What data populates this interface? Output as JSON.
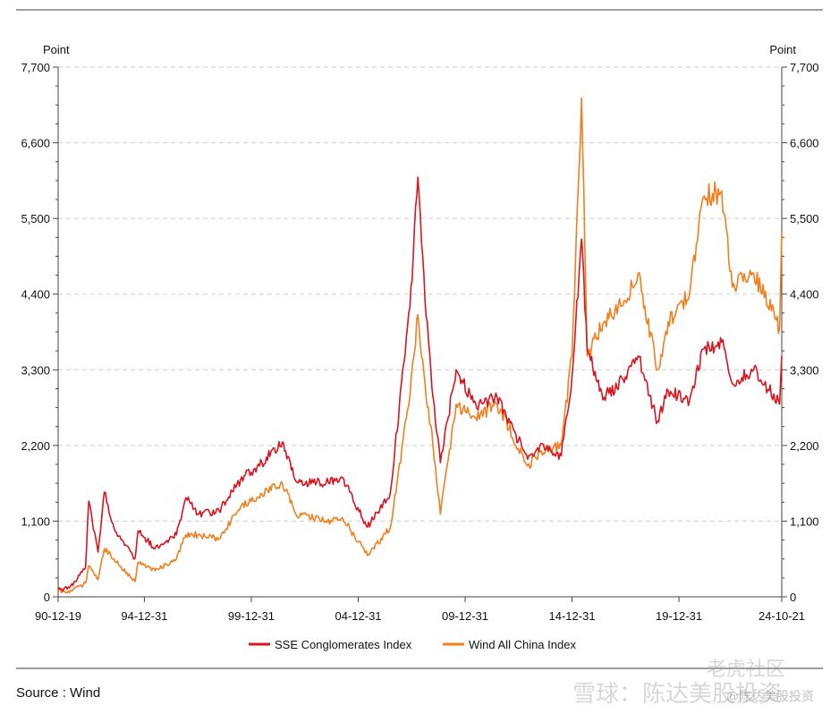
{
  "chart_data": {
    "type": "line",
    "y_unit_left": "Point",
    "y_unit_right": "Point",
    "ylim": [
      0,
      7700
    ],
    "y_ticks": [
      0,
      1100,
      2200,
      3300,
      4400,
      5500,
      6600,
      7700
    ],
    "y_tick_labels": [
      "0",
      "1,100",
      "2,200",
      "3,300",
      "4,400",
      "5,500",
      "6,600",
      "7,700"
    ],
    "xlim": [
      "1990-12-19",
      "2024-10-21"
    ],
    "x_ticks": [
      "1990-12-19",
      "1994-12-31",
      "1999-12-31",
      "2004-12-31",
      "2009-12-31",
      "2014-12-31",
      "2019-12-31",
      "2024-10-21"
    ],
    "x_tick_labels": [
      "90-12-19",
      "94-12-31",
      "99-12-31",
      "04-12-31",
      "09-12-31",
      "14-12-31",
      "19-12-31",
      "24-10-21"
    ],
    "grid": "horizontal dashed",
    "legend_placement": "bottom",
    "series": [
      {
        "name": "SSE Conglomerates Index",
        "color": "#d7151f",
        "points": [
          [
            "1990-12-19",
            100
          ],
          [
            "1991-06-30",
            130
          ],
          [
            "1992-03-31",
            420
          ],
          [
            "1992-05-25",
            1390
          ],
          [
            "1992-10-31",
            650
          ],
          [
            "1993-02-15",
            1520
          ],
          [
            "1993-07-31",
            1000
          ],
          [
            "1994-07-25",
            560
          ],
          [
            "1994-09-15",
            960
          ],
          [
            "1995-06-30",
            700
          ],
          [
            "1996-06-30",
            900
          ],
          [
            "1996-12-10",
            1440
          ],
          [
            "1997-06-30",
            1200
          ],
          [
            "1998-06-30",
            1250
          ],
          [
            "1999-06-30",
            1700
          ],
          [
            "2000-06-30",
            1950
          ],
          [
            "2001-06-14",
            2250
          ],
          [
            "2002-01-31",
            1680
          ],
          [
            "2003-06-30",
            1650
          ],
          [
            "2004-04-07",
            1730
          ],
          [
            "2005-06-06",
            1010
          ],
          [
            "2006-06-30",
            1500
          ],
          [
            "2007-05-31",
            4200
          ],
          [
            "2007-10-16",
            6100
          ],
          [
            "2008-02-15",
            4300
          ],
          [
            "2008-06-30",
            2900
          ],
          [
            "2008-11-04",
            1950
          ],
          [
            "2009-07-31",
            3300
          ],
          [
            "2010-06-30",
            2800
          ],
          [
            "2011-06-30",
            2900
          ],
          [
            "2012-12-03",
            2000
          ],
          [
            "2013-06-30",
            2200
          ],
          [
            "2014-06-30",
            2050
          ],
          [
            "2014-12-31",
            3200
          ],
          [
            "2015-06-12",
            5200
          ],
          [
            "2015-09-15",
            3600
          ],
          [
            "2016-06-30",
            2900
          ],
          [
            "2017-06-30",
            3200
          ],
          [
            "2018-01-31",
            3500
          ],
          [
            "2018-12-31",
            2550
          ],
          [
            "2019-06-30",
            3000
          ],
          [
            "2020-06-30",
            2850
          ],
          [
            "2021-02-15",
            3600
          ],
          [
            "2021-12-31",
            3700
          ],
          [
            "2022-06-30",
            3100
          ],
          [
            "2023-06-30",
            3300
          ],
          [
            "2024-09-15",
            2800
          ],
          [
            "2024-10-21",
            3500
          ]
        ]
      },
      {
        "name": "Wind All China Index",
        "color": "#f07f1e",
        "points": [
          [
            "1990-12-19",
            80
          ],
          [
            "1991-06-30",
            60
          ],
          [
            "1992-03-31",
            200
          ],
          [
            "1992-05-25",
            450
          ],
          [
            "1992-10-31",
            250
          ],
          [
            "1993-02-15",
            700
          ],
          [
            "1993-07-31",
            550
          ],
          [
            "1994-07-25",
            220
          ],
          [
            "1994-09-15",
            500
          ],
          [
            "1995-06-30",
            380
          ],
          [
            "1996-06-30",
            550
          ],
          [
            "1996-12-10",
            900
          ],
          [
            "1997-06-30",
            900
          ],
          [
            "1998-06-30",
            850
          ],
          [
            "1999-06-30",
            1300
          ],
          [
            "2000-06-30",
            1500
          ],
          [
            "2001-06-14",
            1650
          ],
          [
            "2002-01-31",
            1200
          ],
          [
            "2003-06-30",
            1100
          ],
          [
            "2004-04-07",
            1150
          ],
          [
            "2005-06-06",
            600
          ],
          [
            "2006-06-30",
            1000
          ],
          [
            "2007-05-31",
            2900
          ],
          [
            "2007-10-16",
            4100
          ],
          [
            "2008-02-15",
            3100
          ],
          [
            "2008-06-30",
            2200
          ],
          [
            "2008-11-04",
            1200
          ],
          [
            "2009-07-31",
            2800
          ],
          [
            "2010-06-30",
            2600
          ],
          [
            "2011-06-30",
            2800
          ],
          [
            "2012-12-03",
            1900
          ],
          [
            "2013-06-30",
            2100
          ],
          [
            "2014-06-30",
            2200
          ],
          [
            "2014-12-31",
            3500
          ],
          [
            "2015-06-12",
            7250
          ],
          [
            "2015-09-15",
            3500
          ],
          [
            "2016-06-30",
            4000
          ],
          [
            "2017-06-30",
            4300
          ],
          [
            "2018-01-31",
            4700
          ],
          [
            "2018-12-31",
            3300
          ],
          [
            "2019-06-30",
            4000
          ],
          [
            "2020-06-30",
            4400
          ],
          [
            "2021-02-15",
            5800
          ],
          [
            "2021-12-31",
            5900
          ],
          [
            "2022-06-30",
            4500
          ],
          [
            "2023-06-30",
            4700
          ],
          [
            "2024-09-15",
            3900
          ],
          [
            "2024-10-21",
            5300
          ]
        ]
      }
    ]
  },
  "source_text": "Source : Wind",
  "watermark": {
    "line1": "老虎社区",
    "line2": "雪球：陈达美股投资",
    "line3": "@陈达美股投资"
  }
}
